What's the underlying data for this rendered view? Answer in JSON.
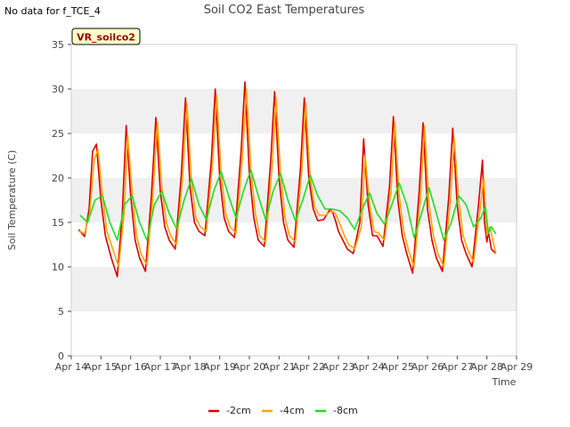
{
  "no_data_note": "No data for f_TCE_4",
  "chart_data": {
    "type": "line",
    "title": "Soil CO2 East Temperatures",
    "badge": "VR_soilco2",
    "xlabel": "Time",
    "ylabel": "Soil Temperature (C)",
    "ylim": [
      0,
      35
    ],
    "yticks": [
      0,
      5,
      10,
      15,
      20,
      25,
      30,
      35
    ],
    "xlim": [
      14,
      29
    ],
    "xticks": [
      14,
      15,
      16,
      17,
      18,
      19,
      20,
      21,
      22,
      23,
      24,
      25,
      26,
      27,
      28,
      29
    ],
    "xtick_labels": [
      "Apr 14",
      "Apr 15",
      "Apr 16",
      "Apr 17",
      "Apr 18",
      "Apr 19",
      "Apr 20",
      "Apr 21",
      "Apr 22",
      "Apr 23",
      "Apr 24",
      "Apr 25",
      "Apr 26",
      "Apr 27",
      "Apr 28",
      "Apr 29"
    ],
    "grid": "alternating horizontal bands",
    "legend_position": "bottom-center",
    "colors": {
      "-2cm": "#dd0000",
      "-4cm": "#ffa500",
      "-8cm": "#22dd22",
      "band": "#f0f0f0",
      "badge_bg": "#ffffcc",
      "badge_text": "#990000"
    },
    "series": [
      {
        "name": "-2cm",
        "x": [
          14.25,
          14.45,
          14.6,
          14.72,
          14.85,
          15.0,
          15.15,
          15.35,
          15.55,
          15.72,
          15.85,
          16.0,
          16.15,
          16.3,
          16.5,
          16.7,
          16.85,
          17.0,
          17.15,
          17.3,
          17.5,
          17.7,
          17.85,
          18.0,
          18.15,
          18.3,
          18.5,
          18.72,
          18.85,
          19.0,
          19.15,
          19.3,
          19.5,
          19.72,
          19.85,
          20.0,
          20.15,
          20.3,
          20.5,
          20.72,
          20.85,
          21.0,
          21.15,
          21.3,
          21.5,
          21.72,
          21.85,
          22.0,
          22.15,
          22.3,
          22.5,
          22.72,
          22.8,
          22.9,
          23.0,
          23.15,
          23.3,
          23.5,
          23.72,
          23.85,
          24.0,
          24.15,
          24.3,
          24.5,
          24.72,
          24.85,
          25.0,
          25.15,
          25.3,
          25.5,
          25.72,
          25.85,
          26.0,
          26.15,
          26.3,
          26.5,
          26.72,
          26.85,
          27.0,
          27.15,
          27.3,
          27.5,
          27.72,
          27.85,
          27.92,
          28.0,
          28.05,
          28.15,
          28.3
        ],
        "y": [
          14.2,
          13.4,
          16.5,
          23.0,
          23.8,
          17.5,
          13.5,
          11.0,
          8.9,
          16.0,
          25.9,
          18.0,
          13.0,
          11.0,
          9.5,
          18.0,
          26.8,
          18.5,
          14.5,
          13.0,
          12.0,
          20.0,
          29.0,
          19.0,
          15.0,
          14.0,
          13.5,
          22.0,
          30.0,
          20.0,
          15.5,
          14.0,
          13.3,
          23.0,
          30.8,
          20.5,
          15.5,
          13.0,
          12.3,
          22.0,
          29.7,
          20.0,
          15.0,
          13.0,
          12.2,
          21.0,
          29.0,
          20.0,
          16.5,
          15.2,
          15.3,
          16.5,
          16.2,
          15.2,
          14.0,
          13.0,
          12.0,
          11.5,
          15.0,
          24.4,
          17.0,
          13.5,
          13.5,
          12.3,
          19.0,
          26.9,
          17.5,
          13.5,
          11.5,
          9.3,
          18.5,
          26.2,
          16.5,
          13.0,
          11.0,
          9.5,
          18.0,
          25.6,
          17.0,
          13.0,
          11.5,
          10.0,
          17.0,
          22.0,
          15.0,
          12.8,
          14.0,
          12.0,
          11.5
        ]
      },
      {
        "name": "-4cm",
        "x": [
          14.25,
          14.45,
          14.62,
          14.77,
          14.9,
          15.05,
          15.2,
          15.4,
          15.6,
          15.78,
          15.9,
          16.05,
          16.2,
          16.35,
          16.55,
          16.75,
          16.9,
          17.05,
          17.2,
          17.35,
          17.55,
          17.75,
          17.9,
          18.05,
          18.2,
          18.35,
          18.55,
          18.77,
          18.9,
          19.05,
          19.2,
          19.35,
          19.55,
          19.77,
          19.9,
          20.05,
          20.2,
          20.35,
          20.55,
          20.77,
          20.9,
          21.05,
          21.2,
          21.35,
          21.55,
          21.77,
          21.9,
          22.05,
          22.2,
          22.35,
          22.55,
          22.77,
          22.9,
          23.05,
          23.2,
          23.35,
          23.55,
          23.77,
          23.9,
          24.05,
          24.2,
          24.35,
          24.55,
          24.77,
          24.9,
          25.05,
          25.2,
          25.35,
          25.55,
          25.77,
          25.9,
          26.05,
          26.2,
          26.35,
          26.55,
          26.77,
          26.9,
          27.05,
          27.2,
          27.35,
          27.55,
          27.77,
          27.9,
          28.0,
          28.1,
          28.3
        ],
        "y": [
          14.0,
          13.8,
          16.0,
          22.0,
          23.2,
          18.0,
          14.0,
          12.0,
          10.0,
          16.0,
          24.8,
          18.5,
          13.5,
          11.5,
          10.2,
          18.0,
          26.3,
          19.0,
          15.0,
          13.5,
          12.5,
          20.0,
          28.3,
          19.5,
          15.5,
          14.5,
          14.0,
          22.0,
          29.3,
          20.5,
          16.0,
          14.5,
          13.8,
          22.5,
          30.0,
          21.0,
          16.0,
          13.5,
          12.8,
          21.5,
          29.0,
          20.5,
          15.5,
          13.5,
          12.8,
          21.0,
          28.4,
          20.0,
          16.7,
          15.8,
          15.8,
          16.3,
          16.0,
          14.8,
          13.5,
          12.5,
          12.0,
          14.5,
          22.5,
          17.0,
          14.0,
          13.8,
          13.0,
          18.5,
          26.2,
          18.0,
          14.0,
          12.0,
          10.0,
          18.0,
          25.9,
          17.0,
          13.5,
          11.5,
          10.0,
          17.5,
          24.5,
          17.5,
          13.5,
          12.0,
          10.5,
          16.5,
          20.0,
          13.5,
          14.5,
          11.5
        ]
      },
      {
        "name": "-8cm",
        "x": [
          14.3,
          14.55,
          14.8,
          15.05,
          15.3,
          15.55,
          15.8,
          16.05,
          16.3,
          16.55,
          16.8,
          17.05,
          17.3,
          17.55,
          17.8,
          18.05,
          18.3,
          18.55,
          18.8,
          19.05,
          19.3,
          19.55,
          19.8,
          20.05,
          20.3,
          20.55,
          20.8,
          21.05,
          21.3,
          21.55,
          21.8,
          22.05,
          22.3,
          22.55,
          22.8,
          23.05,
          23.3,
          23.55,
          23.8,
          24.05,
          24.3,
          24.55,
          24.8,
          25.05,
          25.3,
          25.55,
          25.8,
          26.05,
          26.3,
          26.55,
          26.8,
          27.05,
          27.3,
          27.55,
          27.8,
          27.95,
          28.05,
          28.15,
          28.3
        ],
        "y": [
          15.8,
          15.0,
          17.5,
          18.0,
          15.0,
          13.0,
          17.0,
          18.0,
          15.0,
          13.0,
          17.0,
          18.5,
          16.0,
          14.3,
          17.5,
          19.9,
          17.0,
          15.3,
          18.5,
          20.7,
          18.0,
          15.5,
          18.5,
          20.9,
          18.0,
          15.3,
          18.5,
          20.5,
          17.5,
          15.2,
          17.5,
          20.3,
          18.0,
          16.5,
          16.5,
          16.3,
          15.5,
          14.2,
          16.5,
          18.3,
          16.0,
          14.8,
          17.0,
          19.4,
          17.0,
          13.3,
          16.0,
          18.9,
          16.0,
          13.0,
          15.0,
          18.0,
          17.0,
          14.5,
          15.5,
          16.8,
          13.8,
          14.5,
          13.7
        ]
      }
    ]
  }
}
